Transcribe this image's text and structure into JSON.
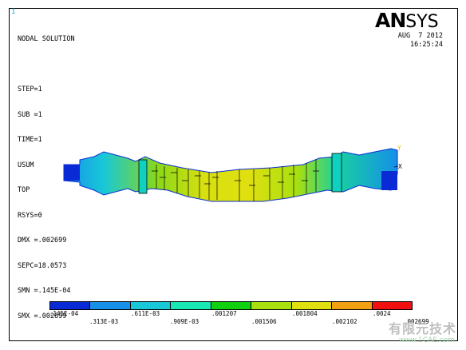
{
  "window_number": "1",
  "info_lines": [
    "NODAL SOLUTION",
    "",
    "STEP=1",
    "SUB =1",
    "TIME=1",
    "USUM",
    "TOP",
    "RSYS=0",
    "DMX =.002699",
    "SEPC=18.0573",
    "SMN =.145E-04",
    "SMX =.002699"
  ],
  "logo": {
    "bold": "AN",
    "rest": "SYS"
  },
  "date": "AUG  7 2012",
  "time": "16:25:24",
  "axes": {
    "y": "Y",
    "x": "X"
  },
  "legend": {
    "colors": [
      "#0a2ad6",
      "#1690e8",
      "#18c8d8",
      "#18e8b4",
      "#10d010",
      "#a8e010",
      "#e0e010",
      "#f0a010",
      "#f01010"
    ],
    "top_labels": [
      ".145E-04",
      ".611E-03",
      ".001207",
      ".001804",
      ".0024"
    ],
    "bottom_labels": [
      ".313E-03",
      ".909E-03",
      ".001506",
      ".002102",
      ".002699"
    ]
  },
  "watermark": {
    "line1": "有限元技术",
    "line2": "www.1CAE.com"
  }
}
